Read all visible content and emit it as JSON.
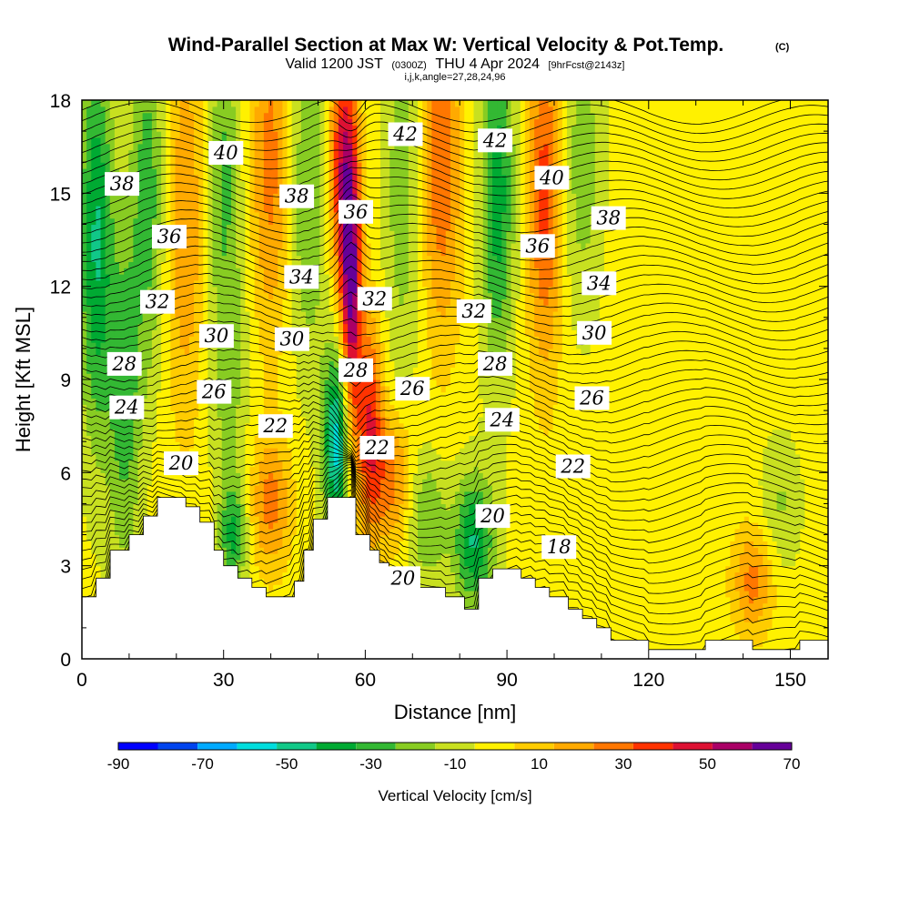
{
  "chart_data": {
    "type": "heatmap",
    "title": "Wind-Parallel Section at Max W: Vertical Velocity & Pot.Temp.",
    "copyright": "(C)",
    "valid_prefix": "Valid 1200 JST",
    "valid_utc": "(0300Z)",
    "valid_date": "THU 4 Apr 2024",
    "forecast": "[9hrFcst@2143z]",
    "ijk": "i,j,k,angle=27,28,24,96",
    "xlabel": "Distance [nm]",
    "ylabel": "Height [Kft MSL]",
    "xlim": [
      0,
      158
    ],
    "ylim": [
      0,
      18
    ],
    "x_ticks": [
      0,
      30,
      60,
      90,
      120,
      150
    ],
    "y_ticks": [
      0,
      3,
      6,
      9,
      12,
      15,
      18
    ],
    "colorbar": {
      "title": "Vertical Velocity [cm/s]",
      "bounds": [
        -90,
        -80,
        -70,
        -60,
        -50,
        -40,
        -30,
        -20,
        -10,
        0,
        10,
        20,
        30,
        40,
        50,
        60,
        70
      ],
      "tick_labels": [
        "-90",
        "-70",
        "-50",
        "-30",
        "-10",
        "10",
        "30",
        "50",
        "70"
      ],
      "colors": [
        "#0000ff",
        "#0044ee",
        "#00aaff",
        "#00dddd",
        "#11c888",
        "#00aa33",
        "#33b833",
        "#88cc22",
        "#c8e020",
        "#fff100",
        "#ffcc00",
        "#ffaa00",
        "#ff7700",
        "#ff3300",
        "#dd1133",
        "#aa0066",
        "#660099"
      ]
    },
    "terrain_profile": [
      [
        0,
        2.0
      ],
      [
        3,
        2.0
      ],
      [
        3,
        2.6
      ],
      [
        6,
        2.6
      ],
      [
        6,
        3.5
      ],
      [
        10,
        3.5
      ],
      [
        10,
        4.0
      ],
      [
        13,
        4.0
      ],
      [
        13,
        4.6
      ],
      [
        16,
        4.6
      ],
      [
        16,
        5.2
      ],
      [
        22,
        5.2
      ],
      [
        22,
        4.9
      ],
      [
        25,
        4.9
      ],
      [
        25,
        4.4
      ],
      [
        28,
        4.4
      ],
      [
        28,
        3.5
      ],
      [
        30,
        3.5
      ],
      [
        30,
        3.0
      ],
      [
        33,
        3.0
      ],
      [
        33,
        2.6
      ],
      [
        36,
        2.6
      ],
      [
        36,
        2.3
      ],
      [
        39,
        2.3
      ],
      [
        39,
        2.0
      ],
      [
        45,
        2.0
      ],
      [
        45,
        2.5
      ],
      [
        47,
        2.5
      ],
      [
        47,
        3.5
      ],
      [
        49,
        3.5
      ],
      [
        49,
        4.5
      ],
      [
        52,
        4.5
      ],
      [
        52,
        5.2
      ],
      [
        58,
        5.2
      ],
      [
        58,
        4.0
      ],
      [
        61,
        4.0
      ],
      [
        61,
        3.5
      ],
      [
        63,
        3.5
      ],
      [
        63,
        3.1
      ],
      [
        65,
        3.1
      ],
      [
        65,
        2.8
      ],
      [
        68,
        2.8
      ],
      [
        68,
        2.6
      ],
      [
        71,
        2.6
      ],
      [
        71,
        2.3
      ],
      [
        77,
        2.3
      ],
      [
        77,
        2.0
      ],
      [
        81,
        2.0
      ],
      [
        81,
        1.6
      ],
      [
        84,
        1.6
      ],
      [
        84,
        2.6
      ],
      [
        87,
        2.6
      ],
      [
        87,
        2.9
      ],
      [
        93,
        2.9
      ],
      [
        93,
        2.6
      ],
      [
        96,
        2.6
      ],
      [
        96,
        2.3
      ],
      [
        99,
        2.3
      ],
      [
        99,
        2.0
      ],
      [
        103,
        2.0
      ],
      [
        103,
        1.6
      ],
      [
        106,
        1.6
      ],
      [
        106,
        1.3
      ],
      [
        109,
        1.3
      ],
      [
        109,
        1.0
      ],
      [
        112,
        1.0
      ],
      [
        112,
        0.6
      ],
      [
        120,
        0.6
      ],
      [
        120,
        0.3
      ],
      [
        132,
        0.3
      ],
      [
        132,
        0.6
      ],
      [
        142,
        0.6
      ],
      [
        142,
        0.3
      ],
      [
        152,
        0.3
      ],
      [
        152,
        0.6
      ],
      [
        158,
        0.6
      ]
    ],
    "w_cores": [
      {
        "x": 3,
        "z": 13.5,
        "sx": 2.5,
        "sz": 4.5,
        "w": -45
      },
      {
        "x": 9,
        "z": 8.5,
        "sx": 2.5,
        "sz": 4.0,
        "w": -30
      },
      {
        "x": 14,
        "z": 15.0,
        "sx": 2.5,
        "sz": 4.0,
        "w": -30
      },
      {
        "x": 22,
        "z": 14.0,
        "sx": 3.0,
        "sz": 4.5,
        "w": 25
      },
      {
        "x": 30,
        "z": 16.0,
        "sx": 2.5,
        "sz": 3.0,
        "w": -25
      },
      {
        "x": 31,
        "z": 9.5,
        "sx": 3.0,
        "sz": 3.0,
        "w": -20
      },
      {
        "x": 40,
        "z": 16.0,
        "sx": 3.0,
        "sz": 4.0,
        "w": 30
      },
      {
        "x": 40,
        "z": 5.0,
        "sx": 3.0,
        "sz": 1.5,
        "w": 30
      },
      {
        "x": 32,
        "z": 4.0,
        "sx": 2.0,
        "sz": 1.2,
        "w": -35
      },
      {
        "x": 48,
        "z": 15.0,
        "sx": 3.0,
        "sz": 4.0,
        "w": -25
      },
      {
        "x": 57,
        "z": 12.0,
        "sx": 1.6,
        "sz": 3.5,
        "w": 65
      },
      {
        "x": 55,
        "z": 16.0,
        "sx": 2.0,
        "sz": 3.0,
        "w": 45
      },
      {
        "x": 54,
        "z": 7.0,
        "sx": 2.0,
        "sz": 2.2,
        "w": -60
      },
      {
        "x": 61,
        "z": 7.5,
        "sx": 2.0,
        "sz": 2.5,
        "w": 45
      },
      {
        "x": 66,
        "z": 5.8,
        "sx": 3.0,
        "sz": 1.5,
        "w": 30
      },
      {
        "x": 68,
        "z": 15.0,
        "sx": 3.0,
        "sz": 4.5,
        "w": -20
      },
      {
        "x": 76,
        "z": 16.0,
        "sx": 3.0,
        "sz": 4.0,
        "w": 35
      },
      {
        "x": 73,
        "z": 4.5,
        "sx": 3.0,
        "sz": 1.5,
        "w": -25
      },
      {
        "x": 83,
        "z": 3.8,
        "sx": 3.0,
        "sz": 1.5,
        "w": -45
      },
      {
        "x": 88,
        "z": 15.0,
        "sx": 2.5,
        "sz": 4.0,
        "w": -40
      },
      {
        "x": 98,
        "z": 15.0,
        "sx": 2.5,
        "sz": 4.0,
        "w": 40
      },
      {
        "x": 106,
        "z": 16.0,
        "sx": 3.0,
        "sz": 3.5,
        "w": -20
      },
      {
        "x": 142,
        "z": 2.5,
        "sx": 3.0,
        "sz": 1.2,
        "w": 30
      },
      {
        "x": 148,
        "z": 5.0,
        "sx": 3.0,
        "sz": 1.5,
        "w": -15
      }
    ],
    "theta_contour_labels": [
      {
        "x": 8.5,
        "z": 15.3,
        "text": "38"
      },
      {
        "x": 30.5,
        "z": 16.3,
        "text": "40"
      },
      {
        "x": 68.5,
        "z": 16.9,
        "text": "42"
      },
      {
        "x": 87.5,
        "z": 16.7,
        "text": "42"
      },
      {
        "x": 99.5,
        "z": 15.5,
        "text": "40"
      },
      {
        "x": 45.5,
        "z": 14.9,
        "text": "38"
      },
      {
        "x": 58,
        "z": 14.4,
        "text": "36"
      },
      {
        "x": 111.5,
        "z": 14.2,
        "text": "38"
      },
      {
        "x": 18.5,
        "z": 13.6,
        "text": "36"
      },
      {
        "x": 96.5,
        "z": 13.3,
        "text": "36"
      },
      {
        "x": 46.5,
        "z": 12.3,
        "text": "34"
      },
      {
        "x": 109.5,
        "z": 12.1,
        "text": "34"
      },
      {
        "x": 16,
        "z": 11.5,
        "text": "32"
      },
      {
        "x": 62,
        "z": 11.6,
        "text": "32"
      },
      {
        "x": 83,
        "z": 11.2,
        "text": "32"
      },
      {
        "x": 28.5,
        "z": 10.4,
        "text": "30"
      },
      {
        "x": 44.5,
        "z": 10.3,
        "text": "30"
      },
      {
        "x": 108.5,
        "z": 10.5,
        "text": "30"
      },
      {
        "x": 9,
        "z": 9.5,
        "text": "28"
      },
      {
        "x": 58,
        "z": 9.3,
        "text": "28"
      },
      {
        "x": 87.5,
        "z": 9.5,
        "text": "28"
      },
      {
        "x": 28,
        "z": 8.6,
        "text": "26"
      },
      {
        "x": 70,
        "z": 8.7,
        "text": "26"
      },
      {
        "x": 108,
        "z": 8.4,
        "text": "26"
      },
      {
        "x": 9.5,
        "z": 8.1,
        "text": "24"
      },
      {
        "x": 89,
        "z": 7.7,
        "text": "24"
      },
      {
        "x": 41,
        "z": 7.5,
        "text": "22"
      },
      {
        "x": 62.5,
        "z": 6.8,
        "text": "22"
      },
      {
        "x": 104,
        "z": 6.2,
        "text": "22"
      },
      {
        "x": 21,
        "z": 6.3,
        "text": "20"
      },
      {
        "x": 87,
        "z": 4.6,
        "text": "20"
      },
      {
        "x": 68,
        "z": 2.6,
        "text": "20"
      },
      {
        "x": 101,
        "z": 3.6,
        "text": "18"
      }
    ]
  }
}
